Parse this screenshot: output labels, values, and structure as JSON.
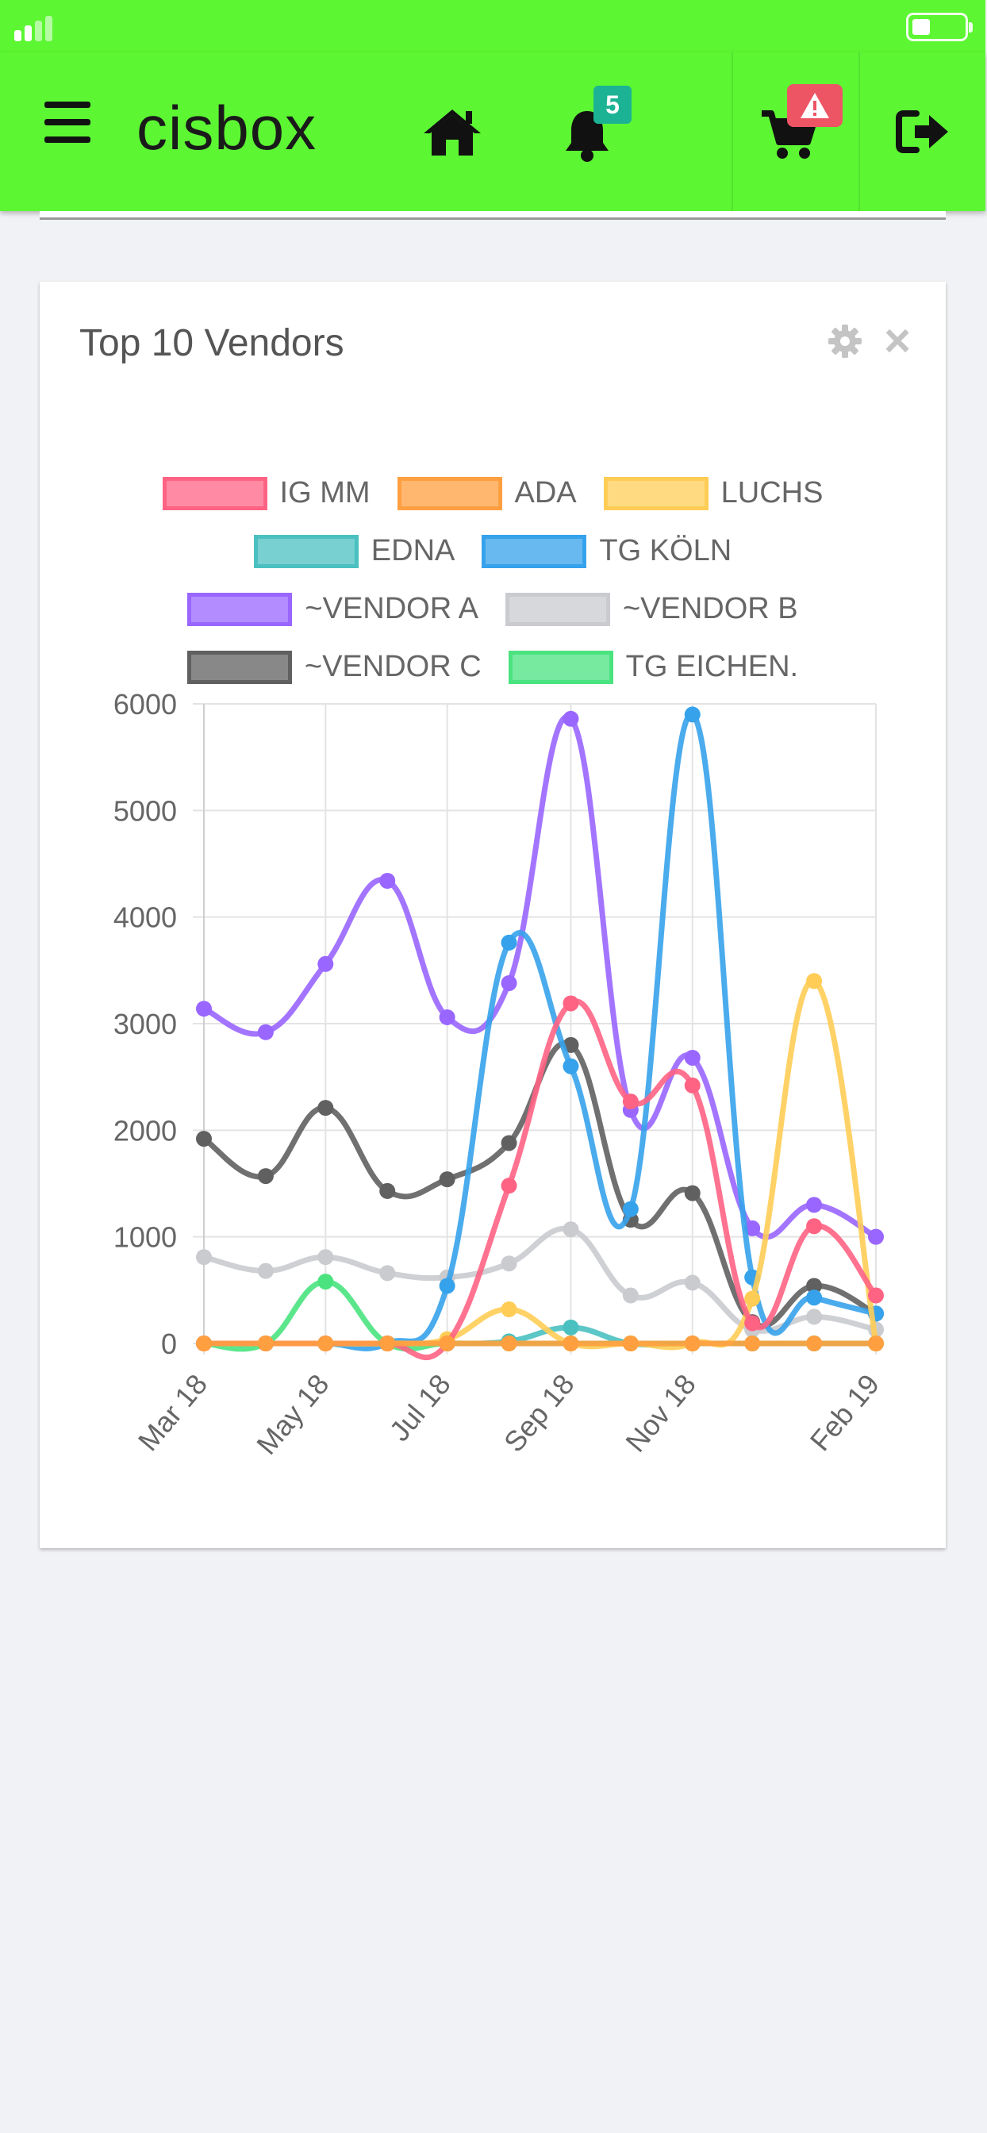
{
  "app": {
    "title": "cisbox",
    "notifications_count": "5"
  },
  "colors": {
    "brand_green": "#5cf633",
    "badge_teal": "#1cb394",
    "badge_red": "#ed5565"
  },
  "icons": {
    "menu": "bars-icon",
    "home": "home-icon",
    "bell": "bell-icon",
    "cart": "shopping-cart-icon",
    "warning": "warning-icon",
    "logout": "sign-out-icon",
    "settings": "gear-icon",
    "close": "close-icon"
  },
  "widget": {
    "title": "Top 10 Vendors",
    "close_label": "×"
  },
  "chart_data": {
    "type": "line",
    "title": "",
    "xlabel": "",
    "ylabel": "",
    "ylim": [
      0,
      6000
    ],
    "yticks": [
      "0",
      "1000",
      "2000",
      "3000",
      "4000",
      "5000",
      "6000"
    ],
    "xtick_labels": [
      "Mar 18",
      "May 18",
      "Jul 18",
      "Sep 18",
      "Nov 18",
      "Feb 19"
    ],
    "x": [
      "2018-03-01",
      "2018-04-01",
      "2018-05-01",
      "2018-06-01",
      "2018-07-01",
      "2018-08-01",
      "2018-09-01",
      "2018-10-01",
      "2018-11-01",
      "2018-12-01",
      "2019-01-01",
      "2019-02-01"
    ],
    "legend_position": "top",
    "grid": true,
    "series": [
      {
        "name": "IG MM",
        "color": "#ff6384",
        "values": [
          0,
          0,
          0,
          0,
          0,
          1480,
          3190,
          2270,
          2420,
          190,
          1100,
          450
        ]
      },
      {
        "name": "ADA",
        "color": "#ff9f40",
        "values": [
          0,
          0,
          0,
          0,
          0,
          0,
          0,
          0,
          0,
          0,
          0,
          0
        ]
      },
      {
        "name": "LUCHS",
        "color": "#ffcd56",
        "values": [
          0,
          0,
          0,
          0,
          40,
          320,
          0,
          0,
          0,
          420,
          3400,
          0
        ]
      },
      {
        "name": "EDNA",
        "color": "#4bc0c0",
        "values": [
          0,
          0,
          0,
          0,
          0,
          20,
          150,
          0,
          0,
          0,
          0,
          0
        ]
      },
      {
        "name": "TG KÖLN",
        "color": "#36a2eb",
        "values": [
          0,
          0,
          0,
          0,
          540,
          3760,
          2600,
          1260,
          5900,
          620,
          430,
          280
        ]
      },
      {
        "name": "~VENDOR A",
        "color": "#9966ff",
        "values": [
          3140,
          2920,
          3560,
          4340,
          3060,
          3380,
          5860,
          2190,
          2680,
          1080,
          1300,
          1000
        ]
      },
      {
        "name": "~VENDOR B",
        "color": "#c9cbcf",
        "values": [
          810,
          680,
          810,
          660,
          620,
          750,
          1070,
          450,
          570,
          130,
          250,
          130
        ]
      },
      {
        "name": "~VENDOR C",
        "color": "#606060",
        "values": [
          1920,
          1570,
          2210,
          1430,
          1540,
          1880,
          2800,
          1160,
          1410,
          200,
          540,
          280
        ]
      },
      {
        "name": "TG EICHEN.",
        "color": "#4ae380",
        "values": [
          0,
          0,
          580,
          0,
          0,
          0,
          0,
          0,
          0,
          0,
          0,
          0
        ]
      }
    ]
  }
}
